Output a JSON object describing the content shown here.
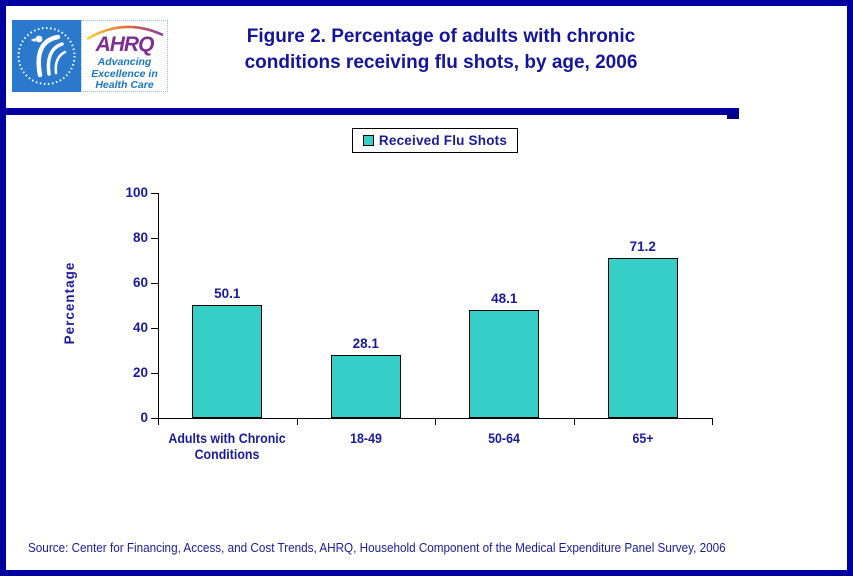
{
  "window": {
    "border_color": "#0000A0",
    "background": "#FFFFFF"
  },
  "header": {
    "hhs_logo": {
      "name": "HHS Department of Health and Human Services eagle seal",
      "background": "#2A79CC"
    },
    "ahrq_logo": {
      "acronym": "AHRQ",
      "tagline_lines": [
        "Advancing",
        "Excellence in",
        "Health Care"
      ],
      "acronym_color": "#7D2F91",
      "tagline_color": "#1B76C4"
    },
    "title_lines": [
      "Figure 2. Percentage of adults with chronic",
      "conditions receiving flu shots, by age, 2006"
    ],
    "title_color": "#15159B"
  },
  "legend": {
    "label": "Received Flu Shots",
    "swatch_color": "#36CFC7"
  },
  "chart_data": {
    "type": "bar",
    "title": "Figure 2. Percentage of adults with chronic conditions receiving flu shots, by age, 2006",
    "categories": [
      "Adults with Chronic Conditions",
      "18-49",
      "50-64",
      "65+"
    ],
    "values": [
      50.1,
      28.1,
      48.1,
      71.2
    ],
    "value_labels": [
      "50.1",
      "28.1",
      "48.1",
      "71.2"
    ],
    "series_name": "Received Flu Shots",
    "xlabel": "",
    "ylabel": "Percentage",
    "ylim": [
      0,
      100
    ],
    "yticks": [
      0,
      20,
      40,
      60,
      80,
      100
    ],
    "grid": false,
    "legend_position": "top-center",
    "bar_color": "#36CFC7",
    "bar_border_color": "#000000",
    "text_color": "#1A1A9C"
  },
  "footer": {
    "source": "Source: Center for Financing, Access, and Cost Trends, AHRQ, Household Component of the Medical Expenditure Panel Survey, 2006"
  }
}
